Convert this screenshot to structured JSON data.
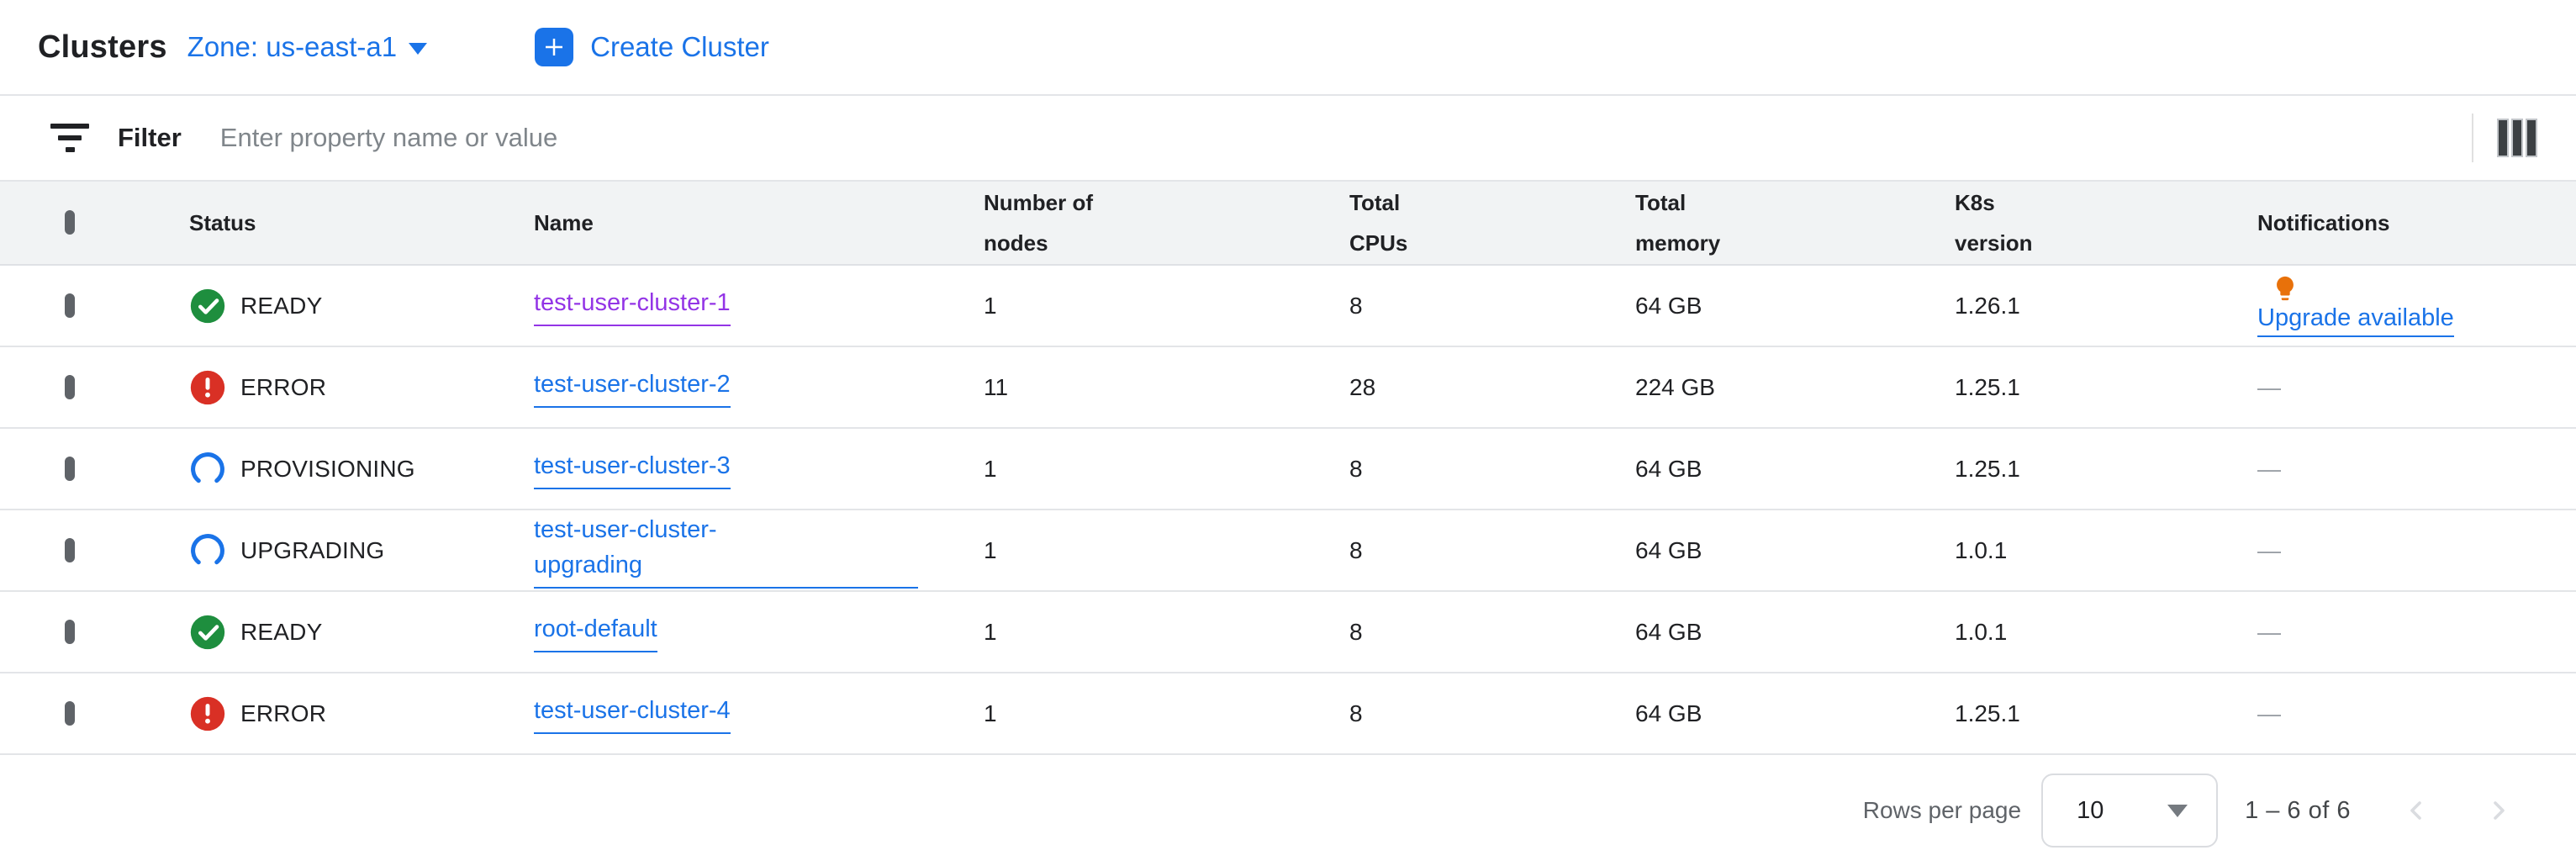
{
  "header": {
    "title": "Clusters",
    "zone_selector": "Zone: us-east-a1",
    "create_button": "Create Cluster"
  },
  "filter": {
    "label": "Filter",
    "placeholder": "Enter property name or value"
  },
  "table": {
    "columns": [
      "Status",
      "Name",
      "Number of nodes",
      "Total CPUs",
      "Total memory",
      "K8s version",
      "Notifications"
    ],
    "rows": [
      {
        "status": "READY",
        "status_icon": "check-circle-icon",
        "name": "test-user-cluster-1",
        "name_visited": true,
        "name_wraps": false,
        "nodes": "1",
        "cpus": "8",
        "memory": "64 GB",
        "k8s": "1.26.1",
        "notification": {
          "icon": "lightbulb-icon",
          "label": "Upgrade available"
        }
      },
      {
        "status": "ERROR",
        "status_icon": "error-circle-icon",
        "name": "test-user-cluster-2",
        "name_visited": false,
        "name_wraps": false,
        "nodes": "11",
        "cpus": "28",
        "memory": "224 GB",
        "k8s": "1.25.1",
        "notification": {
          "label": "—"
        }
      },
      {
        "status": "PROVISIONING",
        "status_icon": "progress-spinner-icon",
        "name": "test-user-cluster-3",
        "name_visited": false,
        "name_wraps": false,
        "nodes": "1",
        "cpus": "8",
        "memory": "64 GB",
        "k8s": "1.25.1",
        "notification": {
          "label": "—"
        }
      },
      {
        "status": "UPGRADING",
        "status_icon": "progress-spinner-icon",
        "name": "test-user-cluster-upgrading",
        "name_visited": false,
        "name_wraps": true,
        "nodes": "1",
        "cpus": "8",
        "memory": "64 GB",
        "k8s": "1.0.1",
        "notification": {
          "label": "—"
        }
      },
      {
        "status": "READY",
        "status_icon": "check-circle-icon",
        "name": "root-default",
        "name_visited": false,
        "name_wraps": false,
        "nodes": "1",
        "cpus": "8",
        "memory": "64 GB",
        "k8s": "1.0.1",
        "notification": {
          "label": "—"
        }
      },
      {
        "status": "ERROR",
        "status_icon": "error-circle-icon",
        "name": "test-user-cluster-4",
        "name_visited": false,
        "name_wraps": false,
        "nodes": "1",
        "cpus": "8",
        "memory": "64 GB",
        "k8s": "1.25.1",
        "notification": {
          "label": "—"
        }
      }
    ]
  },
  "pagination": {
    "rows_per_page_label": "Rows per page",
    "rows_per_page_value": "10",
    "range": "1 – 6 of 6"
  },
  "colors": {
    "accent_blue": "#1a73e8",
    "visited_link_purple": "#9334e6",
    "ready_green": "#1e8e3e",
    "error_red": "#d93025",
    "warning_orange": "#e8710a",
    "header_row_bg": "#f1f3f4",
    "divider": "#e3e5e8",
    "text": "#202124",
    "muted_gray": "#5f6368",
    "disabled_gray": "#dadce0"
  }
}
